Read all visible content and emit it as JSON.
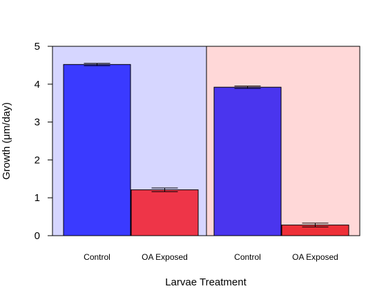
{
  "chart_data": {
    "type": "bar",
    "categories": [
      "Control",
      "OA Exposed",
      "Control",
      "OA Exposed"
    ],
    "values": [
      4.52,
      1.21,
      3.92,
      0.28
    ],
    "errors": [
      0.03,
      0.05,
      0.03,
      0.05
    ],
    "bar_colors": [
      "#3a3aff",
      "#ee3548",
      "#4a35ee",
      "#ee3038"
    ],
    "panel_colors": [
      "#d6d6ff",
      "#ffd8d8"
    ],
    "xlabel": "Larvae Treatment",
    "ylabel": "Growth (μm/day)",
    "ylim": [
      0,
      5
    ],
    "yticks": [
      "0",
      "1",
      "2",
      "3",
      "4",
      "5"
    ],
    "grid": false
  }
}
